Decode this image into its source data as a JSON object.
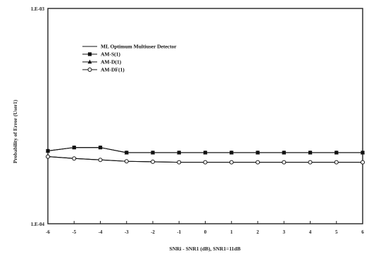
{
  "chart_data": {
    "type": "line",
    "title": "",
    "xlabel": "SNRi - SNR1 (dB), SNR1=11dB",
    "ylabel": "Probability of Error (User1)",
    "x": [
      -6,
      -5,
      -4,
      -3,
      -2,
      -1,
      0,
      1,
      2,
      3,
      4,
      5,
      6
    ],
    "x_tick_labels": [
      "-6",
      "-5",
      "-4",
      "-3",
      "-2",
      "-1",
      "0",
      "1",
      "2",
      "3",
      "4",
      "5",
      "6"
    ],
    "xlim": [
      -6,
      6
    ],
    "ylim": [
      0.0001,
      0.001
    ],
    "y_scale": "log",
    "y_tick_labels": [
      "1.E-03",
      "1.E-04"
    ],
    "grid": false,
    "legend_position": "top-left",
    "series": [
      {
        "name": "ML Optimum Multiuser Detector",
        "marker": "none",
        "values": [
          0.000205,
          0.000201,
          0.000198,
          0.000195,
          0.000194,
          0.000193,
          0.000193,
          0.000193,
          0.000193,
          0.000193,
          0.000193,
          0.000193,
          0.000193
        ]
      },
      {
        "name": "AM-S(1)",
        "marker": "square",
        "values": [
          0.000218,
          0.000226,
          0.000226,
          0.000214,
          0.000214,
          0.000214,
          0.000214,
          0.000214,
          0.000214,
          0.000214,
          0.000214,
          0.000214,
          0.000214
        ]
      },
      {
        "name": "AM-D(1)",
        "marker": "triangle",
        "values": [
          0.000218,
          0.000226,
          0.000226,
          0.000214,
          0.000214,
          0.000214,
          0.000214,
          0.000214,
          0.000214,
          0.000214,
          0.000214,
          0.000214,
          0.000214
        ]
      },
      {
        "name": "AM-DF(1)",
        "marker": "circle-open",
        "values": [
          0.000205,
          0.000201,
          0.000198,
          0.000195,
          0.000194,
          0.000193,
          0.000193,
          0.000193,
          0.000193,
          0.000193,
          0.000193,
          0.000193,
          0.000193
        ]
      }
    ]
  }
}
